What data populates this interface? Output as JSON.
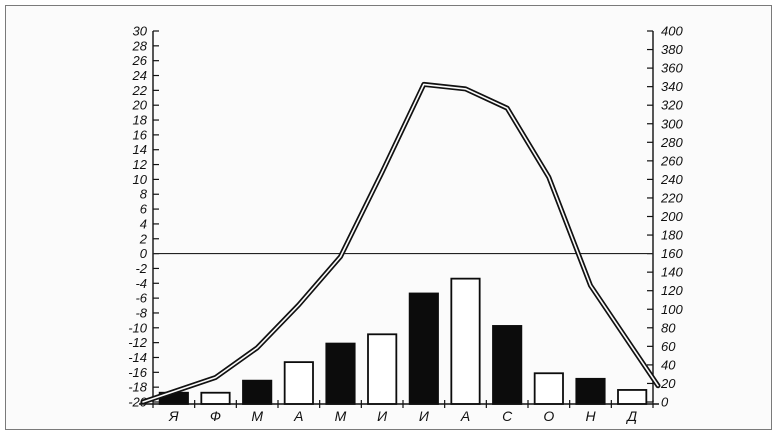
{
  "chart_data": {
    "type": "bar",
    "categories": [
      "Я",
      "Ф",
      "М",
      "А",
      "М",
      "И",
      "И",
      "А",
      "С",
      "О",
      "Н",
      "Д"
    ],
    "left_axis": {
      "ticks": [
        30,
        28,
        26,
        24,
        22,
        20,
        18,
        16,
        14,
        12,
        10,
        8,
        6,
        4,
        2,
        0,
        -2,
        -4,
        -6,
        -8,
        -10,
        -12,
        -14,
        -16,
        -18,
        -20
      ],
      "ylim": [
        -20,
        30
      ]
    },
    "right_axis": {
      "ticks": [
        400,
        380,
        360,
        340,
        320,
        300,
        280,
        260,
        240,
        220,
        200,
        180,
        160,
        140,
        120,
        100,
        80,
        60,
        40,
        20,
        0
      ],
      "ylim": [
        0,
        400
      ]
    },
    "series": [
      {
        "type": "bar",
        "axis": "right",
        "values": [
          10,
          10,
          23,
          43,
          63,
          73,
          117,
          133,
          82,
          31,
          25,
          13
        ],
        "fills": [
          "black",
          "white",
          "black",
          "white",
          "black",
          "white",
          "black",
          "white",
          "black",
          "white",
          "black",
          "white"
        ]
      },
      {
        "type": "line",
        "axis": "left",
        "style": "double",
        "values": [
          -20,
          -16.7,
          -12.7,
          -6.9,
          -0.4,
          11,
          22.8,
          22.2,
          19.6,
          10.3,
          -4.3,
          -17.8
        ]
      }
    ],
    "zero_line": 0,
    "grid": false
  }
}
